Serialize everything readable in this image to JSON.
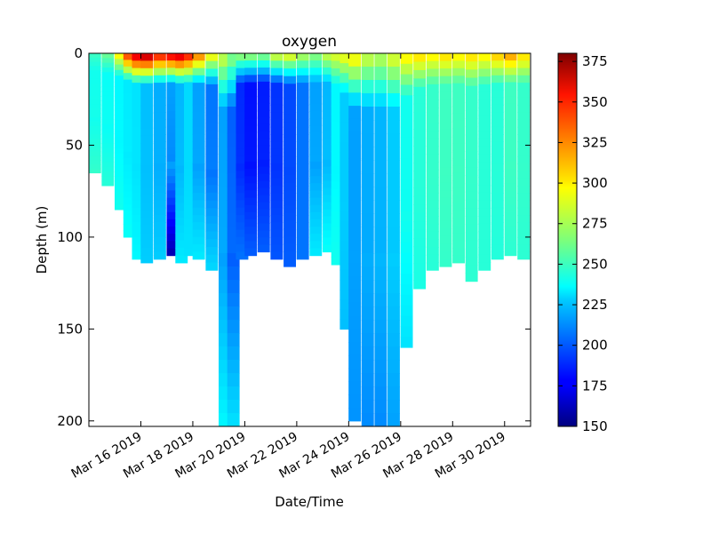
{
  "chart_data": {
    "type": "heatmap",
    "title": "oxygen",
    "xlabel": "Date/Time",
    "ylabel": "Depth (m)",
    "x_ticks": [
      "Mar 16 2019",
      "Mar 18 2019",
      "Mar 20 2019",
      "Mar 22 2019",
      "Mar 24 2019",
      "Mar 26 2019",
      "Mar 28 2019",
      "Mar 30 2019"
    ],
    "x_range": [
      "Mar 14 2019",
      "Mar 31 2019"
    ],
    "y_ticks": [
      0,
      50,
      100,
      150,
      200
    ],
    "ylim": [
      203,
      0
    ],
    "y_inverted": true,
    "colorbar": {
      "label": "",
      "colormap": "jet",
      "range": [
        150,
        380
      ],
      "ticks": [
        150,
        175,
        200,
        225,
        250,
        275,
        300,
        325,
        350,
        375
      ]
    },
    "grid": false,
    "series": [
      {
        "x": [
          "Mar 14 2019",
          "Mar 14 2019",
          "Mar 15 2019",
          "Mar 15 2019",
          "Mar 15 2019",
          "Mar 16 2019",
          "Mar 16 2019",
          "Mar 17 2019",
          "Mar 17 2019",
          "Mar 17 2019",
          "Mar 18 2019",
          "Mar 18 2019",
          "Mar 19 2019",
          "Mar 19 2019",
          "Mar 19 2019",
          "Mar 20 2019",
          "Mar 20 2019",
          "Mar 21 2019",
          "Mar 21 2019",
          "Mar 22 2019",
          "Mar 22 2019",
          "Mar 23 2019",
          "Mar 23 2019",
          "Mar 23 2019",
          "Mar 24 2019",
          "Mar 24 2019",
          "Mar 25 2019",
          "Mar 25 2019",
          "Mar 26 2019",
          "Mar 26 2019",
          "Mar 27 2019",
          "Mar 27 2019",
          "Mar 28 2019",
          "Mar 28 2019",
          "Mar 29 2019",
          "Mar 29 2019",
          "Mar 30 2019",
          "Mar 30 2019",
          "Mar 31 2019"
        ],
        "max_depth": [
          65,
          72,
          85,
          100,
          112,
          114,
          112,
          110,
          114,
          110,
          112,
          118,
          203,
          203,
          112,
          110,
          108,
          112,
          116,
          112,
          110,
          108,
          115,
          150,
          200,
          203,
          203,
          203,
          160,
          128,
          118,
          116,
          114,
          124,
          118,
          112,
          110,
          112,
          110
        ],
        "oxygen_surface": [
          250,
          262,
          300,
          345,
          370,
          378,
          355,
          365,
          372,
          355,
          330,
          300,
          285,
          270,
          275,
          275,
          270,
          290,
          295,
          280,
          270,
          285,
          290,
          295,
          300,
          285,
          280,
          290,
          300,
          305,
          300,
          305,
          300,
          305,
          300,
          310,
          320,
          305,
          300
        ],
        "oxygen_mid": [
          240,
          238,
          235,
          232,
          230,
          222,
          218,
          215,
          220,
          228,
          215,
          205,
          215,
          200,
          188,
          182,
          185,
          190,
          195,
          205,
          215,
          220,
          235,
          225,
          215,
          218,
          220,
          225,
          240,
          245,
          248,
          250,
          250,
          248,
          245,
          245,
          250,
          248,
          245
        ],
        "oxygen_bottom": [
          248,
          245,
          240,
          238,
          235,
          225,
          225,
          160,
          232,
          230,
          232,
          228,
          235,
          230,
          205,
          200,
          200,
          198,
          200,
          205,
          232,
          238,
          240,
          222,
          212,
          210,
          210,
          215,
          230,
          242,
          245,
          248,
          248,
          246,
          245,
          244,
          246,
          246,
          245
        ]
      }
    ]
  }
}
